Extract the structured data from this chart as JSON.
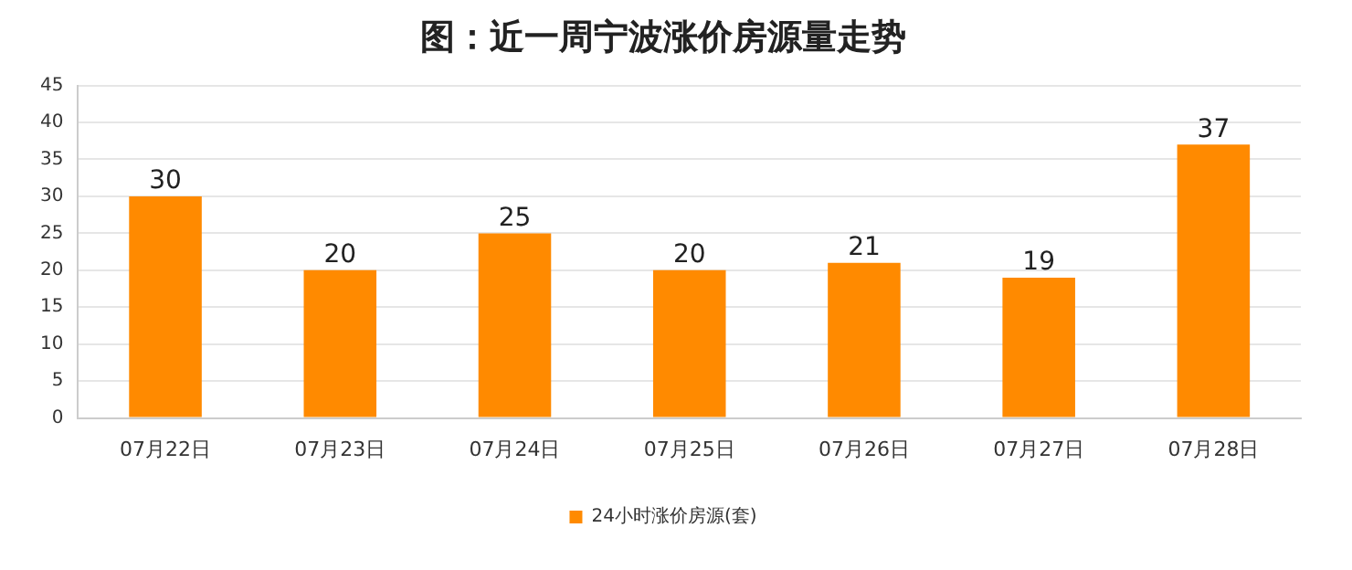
{
  "chart_data": {
    "type": "bar",
    "title": "图：近一周宁波涨价房源量走势",
    "categories": [
      "07月22日",
      "07月23日",
      "07月24日",
      "07月25日",
      "07月26日",
      "07月27日",
      "07月28日"
    ],
    "series": [
      {
        "name": "24小时涨价房源(套)",
        "color": "#ff8a00",
        "values": [
          30,
          20,
          25,
          20,
          21,
          19,
          37
        ]
      }
    ],
    "ylim": [
      0,
      45
    ],
    "yticks": [
      0,
      5,
      10,
      15,
      20,
      25,
      30,
      35,
      40,
      45
    ],
    "grid": "y",
    "legend": "bottom",
    "data_labels": true
  }
}
